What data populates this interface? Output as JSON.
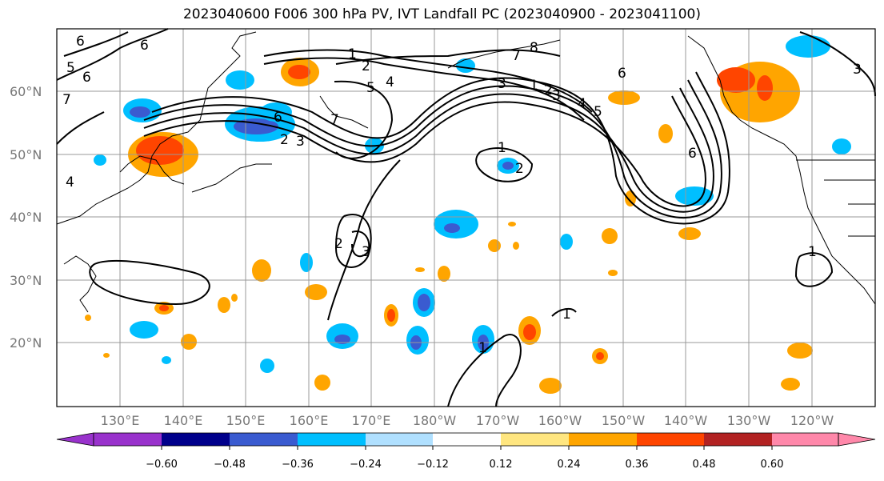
{
  "title": "2023040600 F006 300 hPa PV, IVT Landfall PC (2023040900 - 2023041100)",
  "lat_labels": [
    "60°N",
    "50°N",
    "40°N",
    "30°N",
    "20°N"
  ],
  "lon_labels": [
    "130°E",
    "140°E",
    "150°E",
    "160°E",
    "170°E",
    "180°W",
    "170°W",
    "160°W",
    "150°W",
    "140°W",
    "130°W",
    "120°W"
  ],
  "colorbar": {
    "ticks": [
      "−0.60",
      "−0.48",
      "−0.36",
      "−0.24",
      "−0.12",
      "0.12",
      "0.24",
      "0.36",
      "0.48",
      "0.60"
    ],
    "colors": [
      "#9932cc",
      "#00008b",
      "#3a5bd0",
      "#00bfff",
      "#b0e0ff",
      "#ffffff",
      "#ffe680",
      "#ffa500",
      "#ff4500",
      "#b22222",
      "#ff88aa"
    ]
  },
  "contour_labels": [
    "6",
    "6",
    "5",
    "6",
    "7",
    "1",
    "2",
    "5",
    "4",
    "6",
    "3",
    "2",
    "7",
    "1",
    "2",
    "3",
    "1",
    "2",
    "3",
    "4",
    "5",
    "6",
    "6",
    "3",
    "8",
    "7",
    "2",
    "3",
    "1",
    "1",
    "1",
    "4"
  ],
  "colors": {
    "positive": "#ffa500",
    "positive_strong": "#ff4500",
    "negative": "#00bfff",
    "negative_strong": "#3a5bd0",
    "grid": "#999999"
  }
}
